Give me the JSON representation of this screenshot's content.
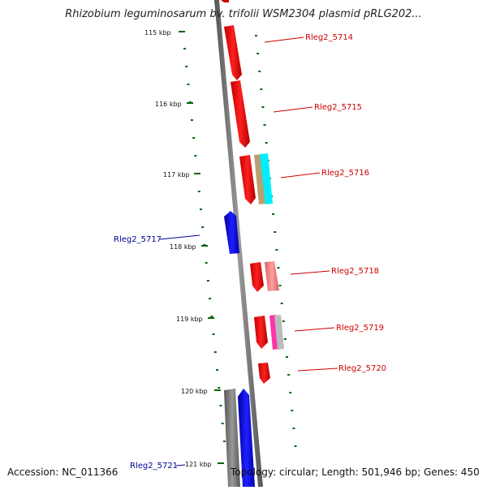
{
  "title": "Rhizobium leguminosarum bv. trifolii WSM2304 plasmid pRLG202...",
  "accession": "Accession: NC_011366",
  "summary": "Topology: circular; Length: 501,946 bp; Genes: 450",
  "ruler_ticks": [
    "115 kbp",
    "116 kbp",
    "117 kbp",
    "118 kbp",
    "119 kbp",
    "120 kbp",
    "121 kbp"
  ],
  "gene_labels": {
    "g5714": "Rleg2_5714",
    "g5715": "Rleg2_5715",
    "g5716": "Rleg2_5716",
    "g5717": "Rleg2_5717",
    "g5718": "Rleg2_5718",
    "g5719": "Rleg2_5719",
    "g5720": "Rleg2_5720",
    "g5721": "Rleg2_5721"
  },
  "colors": {
    "forward_gene": "#ff0000",
    "reverse_gene": "#0000ff",
    "label_forward": "#cc0000",
    "label_reverse": "#000099",
    "ruler_dot": "#006600",
    "backbone": "#808080"
  }
}
